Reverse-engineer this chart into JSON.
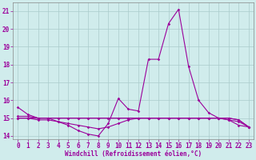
{
  "xlabel": "Windchill (Refroidissement éolien,°C)",
  "x": [
    0,
    1,
    2,
    3,
    4,
    5,
    6,
    7,
    8,
    9,
    10,
    11,
    12,
    13,
    14,
    15,
    16,
    17,
    18,
    19,
    20,
    21,
    22,
    23
  ],
  "line1": [
    15.6,
    15.2,
    15.0,
    15.0,
    14.8,
    14.6,
    14.3,
    14.1,
    14.0,
    14.7,
    16.1,
    15.5,
    15.4,
    18.3,
    18.3,
    20.3,
    21.1,
    17.9,
    16.0,
    15.3,
    15.0,
    14.9,
    14.6,
    14.5
  ],
  "line2": [
    15.1,
    15.1,
    15.0,
    15.0,
    15.0,
    15.0,
    15.0,
    15.0,
    15.0,
    15.0,
    15.0,
    15.0,
    15.0,
    15.0,
    15.0,
    15.0,
    15.0,
    15.0,
    15.0,
    15.0,
    15.0,
    15.0,
    14.9,
    14.5
  ],
  "line3": [
    15.0,
    15.0,
    15.0,
    15.0,
    15.0,
    15.0,
    15.0,
    15.0,
    15.0,
    15.0,
    15.0,
    15.0,
    15.0,
    15.0,
    15.0,
    15.0,
    15.0,
    15.0,
    15.0,
    15.0,
    15.0,
    15.0,
    14.9,
    14.5
  ],
  "line4": [
    15.0,
    15.0,
    14.9,
    14.9,
    14.8,
    14.7,
    14.6,
    14.5,
    14.4,
    14.5,
    14.7,
    14.9,
    15.0,
    15.0,
    15.0,
    15.0,
    15.0,
    15.0,
    15.0,
    15.0,
    15.0,
    14.9,
    14.8,
    14.5
  ],
  "ylim": [
    13.8,
    21.5
  ],
  "yticks": [
    14,
    15,
    16,
    17,
    18,
    19,
    20,
    21
  ],
  "line_color": "#9b009b",
  "bg_color": "#d0ecec",
  "grid_color": "#aacccc",
  "marker": "D",
  "markersize": 1.8,
  "linewidth": 0.8,
  "tick_fontsize": 5.5,
  "label_fontsize": 5.5
}
